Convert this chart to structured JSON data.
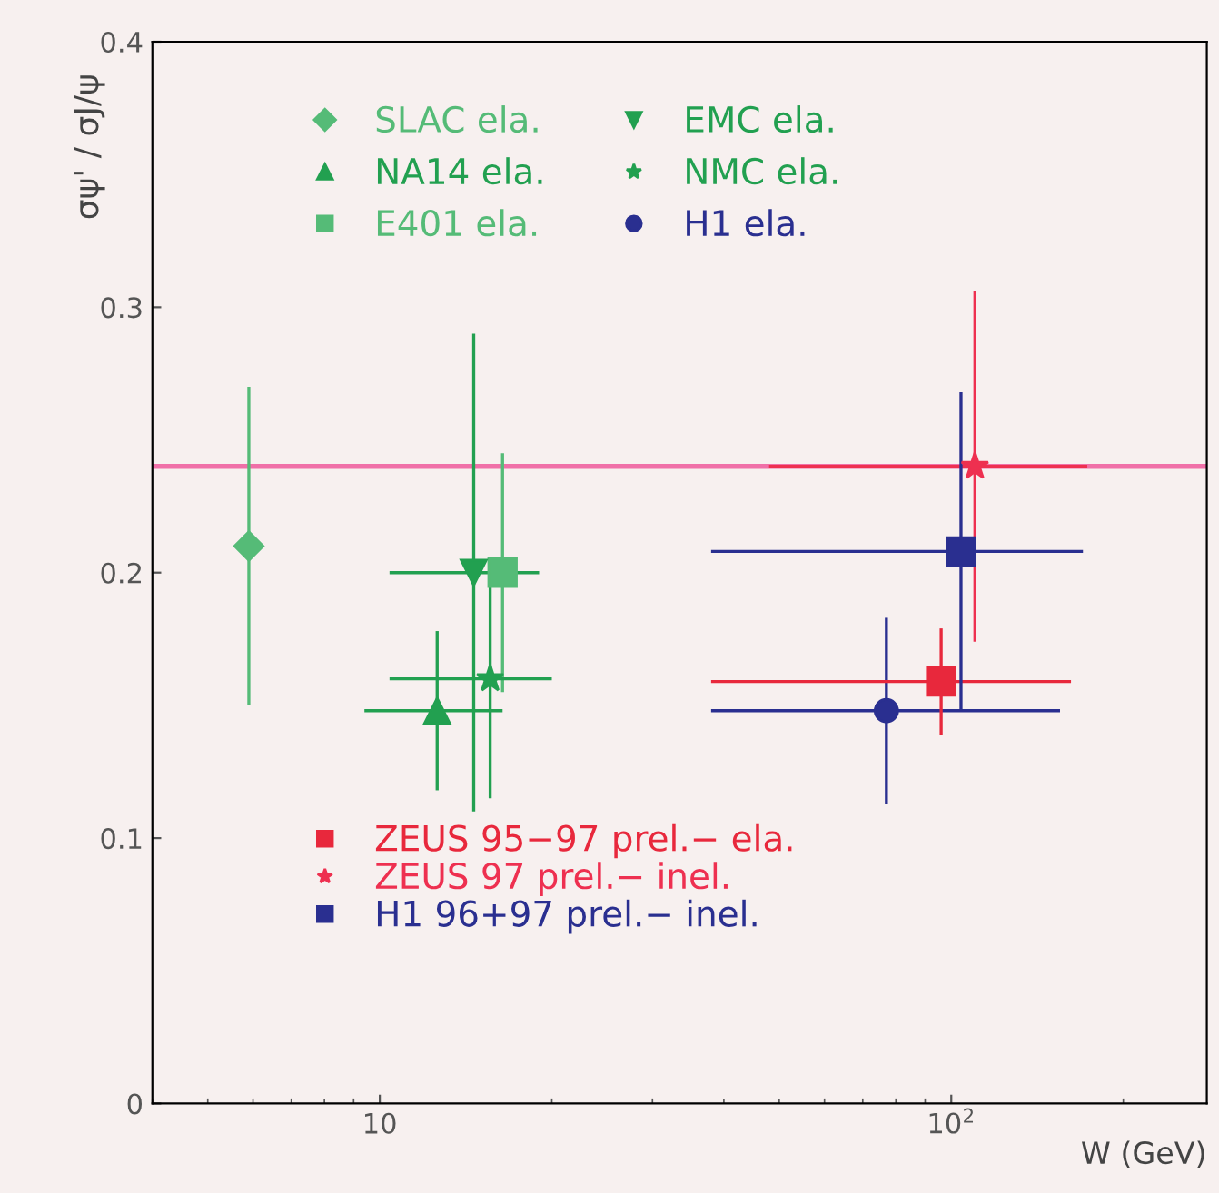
{
  "chart_data": {
    "type": "scatter",
    "xlabel": "W (GeV)",
    "ylabel": "σψ' / σJ/ψ",
    "log": "x",
    "xlim": [
      4,
      280
    ],
    "xticks": [
      10,
      {
        "value": 100,
        "label": "10$^{2}$"
      }
    ],
    "ylim": [
      0,
      0.4
    ],
    "yticks": [
      0,
      0.1,
      0.2,
      0.3,
      0.4
    ],
    "grid": false,
    "legend": "top left",
    "ref_lines": [
      {
        "axis": "y",
        "value": 0.24,
        "color": "#f070a8"
      }
    ],
    "series": [
      {
        "name": "SLAC ela.",
        "color": "#55bb77",
        "marker": "diamond",
        "x": [
          5.9
        ],
        "values": [
          0.21
        ],
        "errors": [
          0.06
        ]
      },
      {
        "name": "NA14 ela.",
        "color": "#22a050",
        "marker": "triangle",
        "x": [
          12.6
        ],
        "values": [
          0.148
        ],
        "errors": [
          0.03
        ],
        "xerrors": [
          [
            9.4,
            16.4
          ]
        ]
      },
      {
        "name": "E401 ela.",
        "color": "#55bb77",
        "marker": "square",
        "x": [
          16.4
        ],
        "values": [
          0.2
        ],
        "errors": [
          0.045
        ]
      },
      {
        "name": "EMC ela.",
        "color": "#22a050",
        "marker": "triangle_down",
        "x": [
          14.6
        ],
        "values": [
          0.2
        ],
        "errors": [
          0.09
        ],
        "xerrors": [
          [
            10.4,
            19
          ]
        ]
      },
      {
        "name": "NMC ela.",
        "color": "#22a050",
        "marker": "star",
        "x": [
          15.6
        ],
        "values": [
          0.16
        ],
        "errors": [
          0.045
        ],
        "xerrors": [
          [
            10.4,
            20
          ]
        ]
      },
      {
        "name": "H1 ela.",
        "color": "#2a2f90",
        "marker": "circle",
        "x": [
          77
        ],
        "values": [
          0.148
        ],
        "errors": [
          0.035
        ],
        "xerrors": [
          [
            38,
            155
          ]
        ]
      },
      {
        "name": "ZEUS 95−97 prel.− ela.",
        "color": "#e8283c",
        "marker": "square",
        "x": [
          96
        ],
        "values": [
          0.159
        ],
        "errors": [
          0.02
        ],
        "xerrors": [
          [
            38,
            162
          ]
        ]
      },
      {
        "name": "ZEUS 97 prel.− inel.",
        "color": "#ee3050",
        "marker": "star",
        "x": [
          110
        ],
        "values": [
          0.24
        ],
        "errors": [
          0.066
        ],
        "xerrors": [
          [
            48,
            173
          ]
        ]
      },
      {
        "name": "H1 96+97 prel.− inel.",
        "color": "#2a2f90",
        "marker": "square",
        "x": [
          104
        ],
        "values": [
          0.208
        ],
        "errors": [
          0.06
        ],
        "xerrors": [
          [
            38,
            170
          ]
        ]
      }
    ]
  }
}
